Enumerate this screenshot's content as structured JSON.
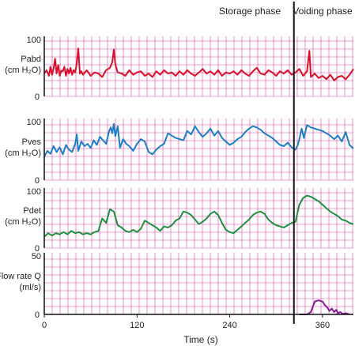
{
  "chart_data": {
    "type": "line",
    "phase_labels": [
      "Storage phase",
      "Voiding phase"
    ],
    "phase_boundary_time": 323,
    "xlabel": "Time (s)",
    "xlim": [
      0,
      400
    ],
    "x_ticks": [
      "0",
      "120",
      "240",
      "360"
    ],
    "x_tick_values": [
      0,
      120,
      240,
      360
    ],
    "grid": true,
    "grid_color": "#e040a0",
    "panels": [
      {
        "name": "Pabd",
        "label_lines": [
          "Pabd",
          "(cm H₂O)"
        ],
        "ylim": [
          0,
          100
        ],
        "y_ticks": [
          "100",
          "0"
        ],
        "color": "#d8102a",
        "x": [
          0,
          3,
          6,
          8,
          10,
          12,
          14,
          16,
          18,
          20,
          22,
          24,
          26,
          28,
          30,
          32,
          34,
          36,
          38,
          40,
          42,
          44,
          46,
          48,
          50,
          55,
          60,
          65,
          70,
          75,
          80,
          85,
          88,
          90,
          92,
          95,
          100,
          105,
          110,
          115,
          120,
          125,
          130,
          135,
          140,
          145,
          150,
          155,
          160,
          165,
          170,
          175,
          180,
          185,
          190,
          195,
          200,
          205,
          210,
          215,
          220,
          225,
          230,
          235,
          240,
          245,
          250,
          255,
          260,
          265,
          270,
          275,
          280,
          285,
          290,
          295,
          300,
          305,
          310,
          315,
          320,
          325,
          330,
          335,
          340,
          343,
          345,
          350,
          355,
          360,
          365,
          370,
          375,
          380,
          385,
          390,
          395,
          400
        ],
        "y": [
          40,
          46,
          36,
          52,
          38,
          48,
          66,
          40,
          55,
          36,
          45,
          44,
          52,
          36,
          48,
          40,
          50,
          38,
          46,
          42,
          58,
          84,
          40,
          44,
          38,
          46,
          36,
          42,
          40,
          34,
          46,
          50,
          60,
          82,
          56,
          42,
          40,
          36,
          46,
          38,
          42,
          44,
          36,
          40,
          34,
          44,
          38,
          46,
          40,
          42,
          36,
          44,
          38,
          46,
          40,
          36,
          42,
          48,
          40,
          44,
          38,
          46,
          36,
          42,
          40,
          44,
          38,
          46,
          40,
          36,
          44,
          50,
          40,
          38,
          46,
          42,
          36,
          44,
          40,
          46,
          38,
          42,
          48,
          36,
          44,
          80,
          34,
          40,
          32,
          36,
          30,
          38,
          28,
          34,
          36,
          30,
          38,
          48
        ]
      },
      {
        "name": "Pves",
        "label_lines": [
          "Pves",
          "(cm H₂O)"
        ],
        "ylim": [
          0,
          100
        ],
        "y_ticks": [
          "100",
          "0"
        ],
        "color": "#1a7fc8",
        "x": [
          0,
          4,
          8,
          12,
          16,
          20,
          24,
          28,
          32,
          36,
          40,
          42,
          44,
          48,
          52,
          56,
          60,
          64,
          68,
          72,
          76,
          80,
          84,
          86,
          88,
          90,
          92,
          95,
          98,
          102,
          106,
          110,
          115,
          120,
          125,
          130,
          135,
          140,
          145,
          150,
          155,
          160,
          165,
          170,
          175,
          180,
          185,
          190,
          195,
          200,
          205,
          210,
          215,
          220,
          225,
          230,
          235,
          240,
          245,
          250,
          255,
          260,
          265,
          270,
          275,
          280,
          285,
          290,
          295,
          300,
          305,
          310,
          315,
          320,
          325,
          328,
          330,
          333,
          336,
          340,
          345,
          350,
          355,
          360,
          365,
          370,
          375,
          380,
          385,
          390,
          395,
          400
        ],
        "y": [
          40,
          50,
          45,
          58,
          48,
          56,
          44,
          60,
          52,
          48,
          62,
          78,
          50,
          66,
          58,
          62,
          55,
          68,
          60,
          74,
          68,
          62,
          84,
          90,
          80,
          96,
          75,
          92,
          55,
          70,
          62,
          58,
          50,
          62,
          70,
          66,
          48,
          44,
          52,
          58,
          62,
          80,
          76,
          72,
          70,
          68,
          84,
          78,
          92,
          82,
          74,
          80,
          88,
          76,
          84,
          72,
          66,
          60,
          64,
          70,
          74,
          82,
          88,
          92,
          90,
          86,
          80,
          76,
          72,
          66,
          60,
          58,
          64,
          56,
          52,
          60,
          70,
          88,
          72,
          94,
          90,
          88,
          86,
          84,
          80,
          76,
          70,
          76,
          66,
          82,
          60,
          54
        ]
      },
      {
        "name": "Pdet",
        "label_lines": [
          "Pdet",
          "(cm H₂O)"
        ],
        "ylim": [
          0,
          100
        ],
        "y_ticks": [
          "100",
          "0"
        ],
        "color": "#1a9040",
        "x": [
          0,
          5,
          10,
          15,
          20,
          25,
          30,
          35,
          40,
          45,
          50,
          55,
          60,
          65,
          70,
          75,
          80,
          85,
          90,
          95,
          100,
          105,
          110,
          115,
          120,
          125,
          130,
          135,
          140,
          145,
          150,
          155,
          160,
          165,
          170,
          175,
          180,
          185,
          190,
          195,
          200,
          205,
          210,
          215,
          220,
          225,
          230,
          235,
          240,
          245,
          250,
          255,
          260,
          265,
          270,
          275,
          280,
          285,
          290,
          295,
          300,
          305,
          310,
          315,
          320,
          325,
          330,
          335,
          340,
          345,
          350,
          355,
          360,
          365,
          370,
          375,
          380,
          385,
          390,
          395,
          400
        ],
        "y": [
          20,
          26,
          22,
          26,
          24,
          28,
          24,
          30,
          26,
          28,
          24,
          26,
          24,
          28,
          30,
          52,
          44,
          68,
          64,
          40,
          36,
          30,
          28,
          32,
          28,
          34,
          48,
          44,
          40,
          36,
          30,
          38,
          36,
          40,
          48,
          52,
          64,
          62,
          58,
          50,
          42,
          46,
          52,
          60,
          64,
          58,
          44,
          32,
          28,
          26,
          32,
          38,
          44,
          50,
          58,
          62,
          64,
          60,
          50,
          44,
          40,
          38,
          36,
          40,
          44,
          46,
          76,
          88,
          92,
          90,
          86,
          82,
          76,
          70,
          64,
          60,
          56,
          50,
          48,
          44,
          42
        ]
      },
      {
        "name": "Flow rate Q",
        "label_lines": [
          "Flow rate Q",
          "(ml/s)"
        ],
        "ylim": [
          0,
          50
        ],
        "y_ticks": [
          "50",
          "0"
        ],
        "color": "#8a1a9a",
        "x": [
          330,
          340,
          345,
          350,
          355,
          360,
          363,
          366,
          369,
          372,
          375,
          378,
          380,
          383,
          386,
          390,
          395
        ],
        "y": [
          0,
          0,
          2,
          11,
          12,
          11,
          8,
          6,
          3,
          5,
          2,
          4,
          1,
          2,
          0.5,
          1,
          0
        ]
      }
    ]
  }
}
